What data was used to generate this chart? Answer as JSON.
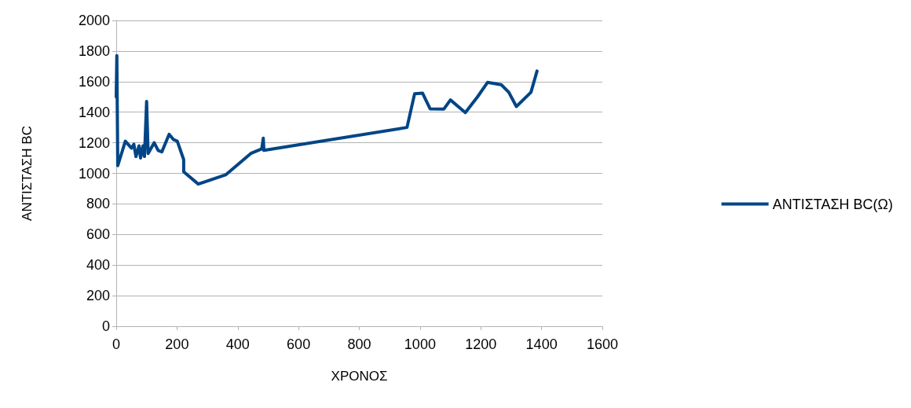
{
  "chart_data": {
    "type": "line",
    "xlabel": "ΧΡΟΝΟΣ",
    "ylabel": "ΑΝΤΙΣΤΑΣΗ BC",
    "x": [
      0,
      2,
      5,
      30,
      50,
      58,
      65,
      75,
      80,
      88,
      93,
      100,
      105,
      125,
      138,
      150,
      174,
      189,
      201,
      222,
      222,
      270,
      360,
      443,
      479,
      484,
      486,
      957,
      982,
      1008,
      1033,
      1078,
      1100,
      1149,
      1189,
      1222,
      1267,
      1292,
      1317,
      1365,
      1385
    ],
    "series": [
      {
        "name": "ΑΝΤΙΣΤΑΣΗ BC(Ω)",
        "color": "#004586",
        "values": [
          1500,
          1770,
          1050,
          1210,
          1165,
          1190,
          1110,
          1180,
          1100,
          1180,
          1110,
          1470,
          1130,
          1200,
          1150,
          1140,
          1255,
          1220,
          1210,
          1090,
          1010,
          930,
          990,
          1130,
          1160,
          1230,
          1150,
          1300,
          1520,
          1525,
          1422,
          1420,
          1480,
          1397,
          1500,
          1595,
          1580,
          1530,
          1437,
          1530,
          1669
        ]
      }
    ],
    "xlim": [
      0,
      1600
    ],
    "xticks": [
      0,
      200,
      400,
      600,
      800,
      1000,
      1200,
      1400,
      1600
    ],
    "ylim": [
      0,
      2000
    ],
    "yticks": [
      0,
      200,
      400,
      600,
      800,
      1000,
      1200,
      1400,
      1600,
      1800,
      2000
    ],
    "grid": "y",
    "legend": "right",
    "marker": "none",
    "line_style": "solid"
  }
}
